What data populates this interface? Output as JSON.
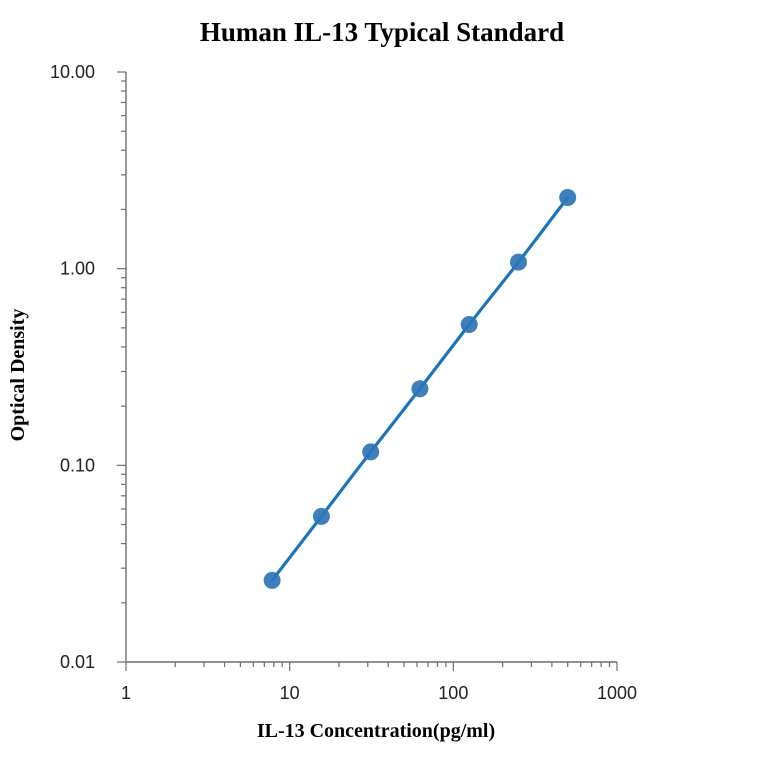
{
  "chart_data": {
    "type": "scatter",
    "title": "Human IL-13 Typical Standard",
    "xlabel": "IL-13 Concentration(pg/ml)",
    "ylabel": "Optical Density",
    "x_scale": "log",
    "y_scale": "log",
    "xlim": [
      1,
      1000
    ],
    "ylim": [
      0.01,
      10
    ],
    "x_ticks": [
      1,
      10,
      100,
      1000
    ],
    "x_tick_labels": [
      "1",
      "10",
      "100",
      "1000"
    ],
    "y_ticks": [
      0.01,
      0.1,
      1,
      10
    ],
    "y_tick_labels": [
      "0.01",
      "0.10",
      "1.00",
      "10.00"
    ],
    "grid": false,
    "legend": "none",
    "series": [
      {
        "x": [
          7.81,
          15.63,
          31.25,
          62.5,
          125,
          250,
          500
        ],
        "y": [
          0.026,
          0.055,
          0.117,
          0.245,
          0.52,
          1.08,
          2.3
        ],
        "color": "#2e75b6",
        "fit_line_color": "#1b75b8"
      }
    ]
  }
}
